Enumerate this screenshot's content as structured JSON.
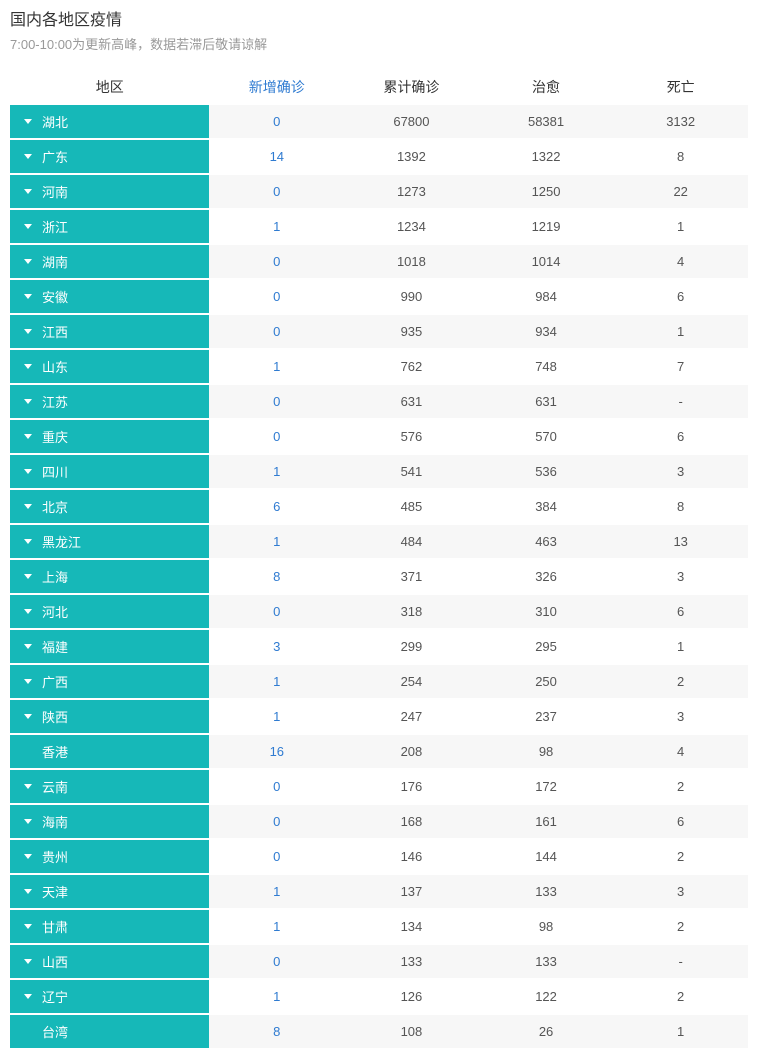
{
  "page": {
    "title": "国内各地区疫情",
    "subtitle": "7:00-10:00为更新高峰，数据若滞后敬请谅解"
  },
  "table": {
    "columns": {
      "region": "地区",
      "new_confirmed": "新增确诊",
      "total_confirmed": "累计确诊",
      "cured": "治愈",
      "dead": "死亡"
    },
    "colors": {
      "region_bg": "#16b8b8",
      "region_text": "#ffffff",
      "highlight_text": "#2f7bd1",
      "row_alt_bg": "#f7f7f7",
      "text": "#555555"
    },
    "rows": [
      {
        "region": "湖北",
        "expandable": true,
        "new": "0",
        "total": "67800",
        "cured": "58381",
        "dead": "3132"
      },
      {
        "region": "广东",
        "expandable": true,
        "new": "14",
        "total": "1392",
        "cured": "1322",
        "dead": "8"
      },
      {
        "region": "河南",
        "expandable": true,
        "new": "0",
        "total": "1273",
        "cured": "1250",
        "dead": "22"
      },
      {
        "region": "浙江",
        "expandable": true,
        "new": "1",
        "total": "1234",
        "cured": "1219",
        "dead": "1"
      },
      {
        "region": "湖南",
        "expandable": true,
        "new": "0",
        "total": "1018",
        "cured": "1014",
        "dead": "4"
      },
      {
        "region": "安徽",
        "expandable": true,
        "new": "0",
        "total": "990",
        "cured": "984",
        "dead": "6"
      },
      {
        "region": "江西",
        "expandable": true,
        "new": "0",
        "total": "935",
        "cured": "934",
        "dead": "1"
      },
      {
        "region": "山东",
        "expandable": true,
        "new": "1",
        "total": "762",
        "cured": "748",
        "dead": "7"
      },
      {
        "region": "江苏",
        "expandable": true,
        "new": "0",
        "total": "631",
        "cured": "631",
        "dead": "-"
      },
      {
        "region": "重庆",
        "expandable": true,
        "new": "0",
        "total": "576",
        "cured": "570",
        "dead": "6"
      },
      {
        "region": "四川",
        "expandable": true,
        "new": "1",
        "total": "541",
        "cured": "536",
        "dead": "3"
      },
      {
        "region": "北京",
        "expandable": true,
        "new": "6",
        "total": "485",
        "cured": "384",
        "dead": "8"
      },
      {
        "region": "黑龙江",
        "expandable": true,
        "new": "1",
        "total": "484",
        "cured": "463",
        "dead": "13"
      },
      {
        "region": "上海",
        "expandable": true,
        "new": "8",
        "total": "371",
        "cured": "326",
        "dead": "3"
      },
      {
        "region": "河北",
        "expandable": true,
        "new": "0",
        "total": "318",
        "cured": "310",
        "dead": "6"
      },
      {
        "region": "福建",
        "expandable": true,
        "new": "3",
        "total": "299",
        "cured": "295",
        "dead": "1"
      },
      {
        "region": "广西",
        "expandable": true,
        "new": "1",
        "total": "254",
        "cured": "250",
        "dead": "2"
      },
      {
        "region": "陕西",
        "expandable": true,
        "new": "1",
        "total": "247",
        "cured": "237",
        "dead": "3"
      },
      {
        "region": "香港",
        "expandable": false,
        "new": "16",
        "total": "208",
        "cured": "98",
        "dead": "4"
      },
      {
        "region": "云南",
        "expandable": true,
        "new": "0",
        "total": "176",
        "cured": "172",
        "dead": "2"
      },
      {
        "region": "海南",
        "expandable": true,
        "new": "0",
        "total": "168",
        "cured": "161",
        "dead": "6"
      },
      {
        "region": "贵州",
        "expandable": true,
        "new": "0",
        "total": "146",
        "cured": "144",
        "dead": "2"
      },
      {
        "region": "天津",
        "expandable": true,
        "new": "1",
        "total": "137",
        "cured": "133",
        "dead": "3"
      },
      {
        "region": "甘肃",
        "expandable": true,
        "new": "1",
        "total": "134",
        "cured": "98",
        "dead": "2"
      },
      {
        "region": "山西",
        "expandable": true,
        "new": "0",
        "total": "133",
        "cured": "133",
        "dead": "-"
      },
      {
        "region": "辽宁",
        "expandable": true,
        "new": "1",
        "total": "126",
        "cured": "122",
        "dead": "2"
      },
      {
        "region": "台湾",
        "expandable": false,
        "new": "8",
        "total": "108",
        "cured": "26",
        "dead": "1"
      }
    ]
  }
}
